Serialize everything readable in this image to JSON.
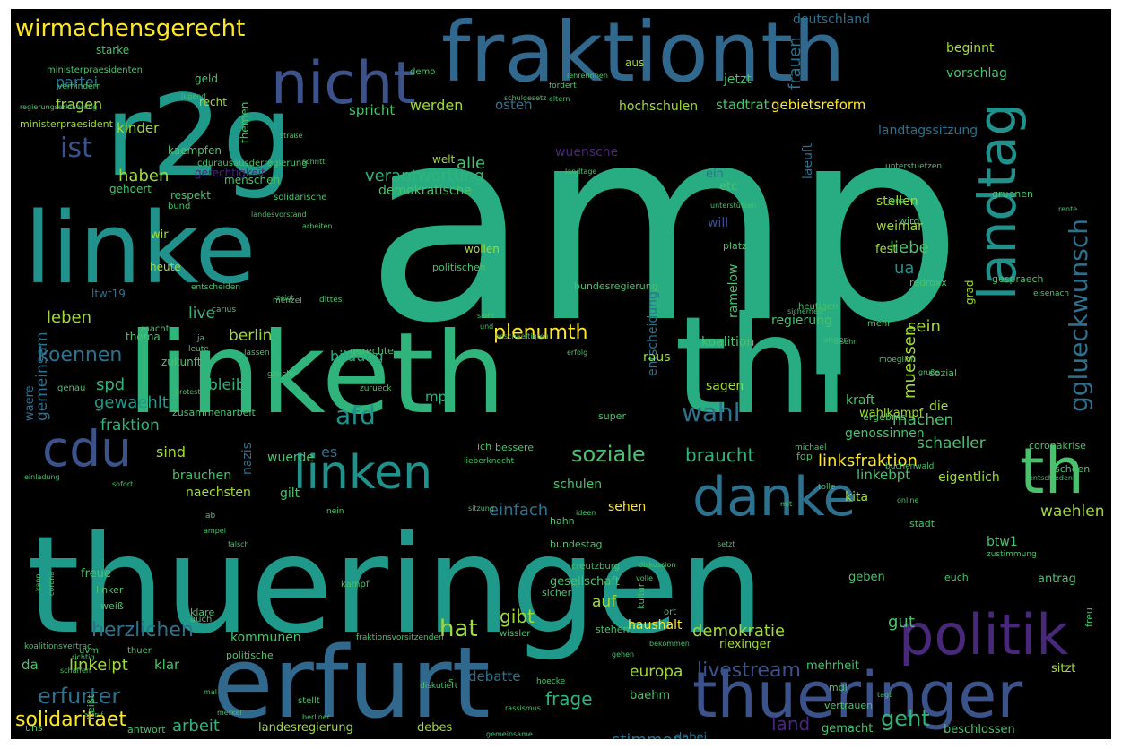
{
  "wordcloud": {
    "background": "#000000",
    "palette": {
      "yellow": "#fde725",
      "lime": "#a0da39",
      "green": "#4ac16d",
      "mint": "#2fb47c",
      "seagreen": "#27ad81",
      "teal": "#1f9a8a",
      "cyan": "#21918c",
      "steel": "#2c728e",
      "blue": "#31688e",
      "slate": "#3b528b",
      "indigo": "#414487",
      "purple": "#482878",
      "violet": "#440154"
    },
    "words": [
      {
        "text": "amp",
        "color": "#27ad81"
      },
      {
        "text": "thueringen",
        "color": "#1f9a8a"
      },
      {
        "text": "linketh",
        "color": "#2fb47c"
      },
      {
        "text": "fraktionth",
        "color": "#31688e"
      },
      {
        "text": "r2g",
        "color": "#1f9a8a"
      },
      {
        "text": "erfurt",
        "color": "#31688e"
      },
      {
        "text": "linke",
        "color": "#21918c"
      },
      {
        "text": "thl",
        "color": "#27ad81"
      },
      {
        "text": "thueringer",
        "color": "#3b528b"
      },
      {
        "text": "nicht",
        "color": "#3b528b"
      },
      {
        "text": "politik",
        "color": "#482878"
      },
      {
        "text": "danke",
        "color": "#2c728e"
      },
      {
        "text": "linken",
        "color": "#21918c"
      },
      {
        "text": "cdu",
        "color": "#3b528b"
      },
      {
        "text": "landtag",
        "color": "#21918c"
      },
      {
        "text": "th",
        "color": "#4ac16d"
      },
      {
        "text": "wirmachensgerecht",
        "color": "#fde725"
      },
      {
        "text": "ist",
        "color": "#3b528b"
      },
      {
        "text": "gglueckwunsch",
        "color": "#2c728e"
      },
      {
        "text": "plenumth",
        "color": "#fde725"
      },
      {
        "text": "soziale",
        "color": "#4ac16d"
      },
      {
        "text": "afd",
        "color": "#21918c"
      },
      {
        "text": "koennen",
        "color": "#2c728e"
      },
      {
        "text": "herzlichen",
        "color": "#2c728e"
      },
      {
        "text": "erfurter",
        "color": "#2c728e"
      },
      {
        "text": "solidaritaet",
        "color": "#fde725"
      },
      {
        "text": "demokratie",
        "color": "#a0da39"
      },
      {
        "text": "livestream",
        "color": "#3b528b"
      },
      {
        "text": "hat",
        "color": "#a0da39"
      },
      {
        "text": "geht",
        "color": "#2fb47c"
      },
      {
        "text": "wahl",
        "color": "#2c728e"
      },
      {
        "text": "braucht",
        "color": "#2fb47c"
      },
      {
        "text": "linksfraktion",
        "color": "#fde725"
      },
      {
        "text": "haben",
        "color": "#a0da39"
      },
      {
        "text": "verantwortung",
        "color": "#2fb47c"
      },
      {
        "text": "werden",
        "color": "#a0da39"
      },
      {
        "text": "partei",
        "color": "#2c728e"
      },
      {
        "text": "fragen",
        "color": "#a0da39"
      },
      {
        "text": "alle",
        "color": "#4ac16d"
      },
      {
        "text": "leben",
        "color": "#a0da39"
      },
      {
        "text": "berlin",
        "color": "#a0da39"
      },
      {
        "text": "live",
        "color": "#2fb47c"
      },
      {
        "text": "spd",
        "color": "#2fb47c"
      },
      {
        "text": "gewaehlt",
        "color": "#1f9a8a"
      },
      {
        "text": "fraktion",
        "color": "#2fb47c"
      },
      {
        "text": "gemeinsam",
        "color": "#2c728e"
      },
      {
        "text": "bleibt",
        "color": "#2fb47c"
      },
      {
        "text": "bildung",
        "color": "#27ad81"
      },
      {
        "text": "sein",
        "color": "#a0da39"
      },
      {
        "text": "muessen",
        "color": "#a0da39"
      },
      {
        "text": "liebe",
        "color": "#4ac16d"
      },
      {
        "text": "ua",
        "color": "#21918c"
      },
      {
        "text": "gibt",
        "color": "#a0da39"
      },
      {
        "text": "land",
        "color": "#482878"
      },
      {
        "text": "frage",
        "color": "#2fb47c"
      },
      {
        "text": "arbeit",
        "color": "#2fb47c"
      },
      {
        "text": "stimmen",
        "color": "#2c728e"
      },
      {
        "text": "schaeller",
        "color": "#4ac16d"
      },
      {
        "text": "machen",
        "color": "#4ac16d"
      },
      {
        "text": "linkelpt",
        "color": "#a0da39"
      },
      {
        "text": "waehlen",
        "color": "#a0da39"
      },
      {
        "text": "einfach",
        "color": "#2c728e"
      },
      {
        "text": "gut",
        "color": "#4ac16d"
      },
      {
        "text": "frauen",
        "color": "#2c728e"
      },
      {
        "text": "mp",
        "color": "#2fb47c"
      },
      {
        "text": "sind",
        "color": "#a0da39"
      },
      {
        "text": "auf",
        "color": "#a0da39"
      },
      {
        "text": "europa",
        "color": "#a0da39"
      },
      {
        "text": "debatte",
        "color": "#2c728e"
      },
      {
        "text": "linkebpt",
        "color": "#4ac16d"
      },
      {
        "text": "kinder",
        "color": "#a0da39"
      },
      {
        "text": "osten",
        "color": "#2c728e"
      },
      {
        "text": "spricht",
        "color": "#4ac16d"
      },
      {
        "text": "stadtrat",
        "color": "#4ac16d"
      },
      {
        "text": "gebietsreform",
        "color": "#fde725"
      },
      {
        "text": "landtagssitzung",
        "color": "#2c728e"
      },
      {
        "text": "deutschland",
        "color": "#2c728e"
      },
      {
        "text": "beginnt",
        "color": "#a0da39"
      },
      {
        "text": "vorschlag",
        "color": "#4ac16d"
      },
      {
        "text": "jetzt",
        "color": "#4ac16d"
      },
      {
        "text": "hochschulen",
        "color": "#a0da39"
      },
      {
        "text": "wuensche",
        "color": "#482878"
      },
      {
        "text": "entscheidung",
        "color": "#2c728e"
      },
      {
        "text": "demokratische",
        "color": "#4ac16d"
      },
      {
        "text": "laeuft",
        "color": "#2c728e"
      },
      {
        "text": "stellen",
        "color": "#a0da39"
      },
      {
        "text": "weimar",
        "color": "#a0da39"
      },
      {
        "text": "will",
        "color": "#3b528b"
      },
      {
        "text": "ramelow",
        "color": "#4ac16d"
      },
      {
        "text": "regierung",
        "color": "#4ac16d"
      },
      {
        "text": "raus",
        "color": "#a0da39"
      },
      {
        "text": "koalition",
        "color": "#4ac16d"
      },
      {
        "text": "sagen",
        "color": "#a0da39"
      },
      {
        "text": "kraft",
        "color": "#4ac16d"
      },
      {
        "text": "nazis",
        "color": "#2c728e"
      },
      {
        "text": "wuerde",
        "color": "#4ac16d"
      },
      {
        "text": "brauchen",
        "color": "#4ac16d"
      },
      {
        "text": "sehen",
        "color": "#fde725"
      },
      {
        "text": "schulen",
        "color": "#4ac16d"
      },
      {
        "text": "eigentlich",
        "color": "#a0da39"
      },
      {
        "text": "genossinnen",
        "color": "#4ac16d"
      },
      {
        "text": "kita",
        "color": "#a0da39"
      },
      {
        "text": "naechsten",
        "color": "#a0da39"
      },
      {
        "text": "gilt",
        "color": "#4ac16d"
      },
      {
        "text": "btw1",
        "color": "#4ac16d"
      },
      {
        "text": "haushalt",
        "color": "#fde725"
      },
      {
        "text": "kommunen",
        "color": "#4ac16d"
      },
      {
        "text": "riexinger",
        "color": "#a0da39"
      },
      {
        "text": "mehrheit",
        "color": "#4ac16d"
      },
      {
        "text": "sitzt",
        "color": "#a0da39"
      },
      {
        "text": "baehm",
        "color": "#4ac16d"
      },
      {
        "text": "beschlossen",
        "color": "#4ac16d"
      },
      {
        "text": "gemacht",
        "color": "#4ac16d"
      },
      {
        "text": "dabei",
        "color": "#2c728e"
      },
      {
        "text": "landesregierung",
        "color": "#a0da39"
      },
      {
        "text": "debes",
        "color": "#a0da39"
      },
      {
        "text": "da",
        "color": "#4ac16d"
      },
      {
        "text": "klar",
        "color": "#4ac16d"
      },
      {
        "text": "waere",
        "color": "#2c728e"
      },
      {
        "text": "freue",
        "color": "#4ac16d"
      },
      {
        "text": "gesellschaft",
        "color": "#4ac16d"
      },
      {
        "text": "geben",
        "color": "#4ac16d"
      },
      {
        "text": "antrag",
        "color": "#4ac16d"
      },
      {
        "text": "fest",
        "color": "#a0da39"
      },
      {
        "text": "etc",
        "color": "#4ac16d"
      },
      {
        "text": "ein",
        "color": "#2c728e"
      },
      {
        "text": "thema",
        "color": "#4ac16d"
      },
      {
        "text": "zukunft",
        "color": "#4ac16d"
      },
      {
        "text": "themen",
        "color": "#4ac16d"
      },
      {
        "text": "menschen",
        "color": "#4ac16d"
      },
      {
        "text": "respekt",
        "color": "#4ac16d"
      },
      {
        "text": "gerechtigkeit",
        "color": "#482878"
      },
      {
        "text": "gehoert",
        "color": "#4ac16d"
      },
      {
        "text": "wir",
        "color": "#a0da39"
      },
      {
        "text": "heute",
        "color": "#a0da39"
      },
      {
        "text": "ltwt19",
        "color": "#2c728e"
      },
      {
        "text": "welt",
        "color": "#a0da39"
      },
      {
        "text": "geld",
        "color": "#4ac16d"
      },
      {
        "text": "recht",
        "color": "#a0da39"
      },
      {
        "text": "starke",
        "color": "#4ac16d"
      },
      {
        "text": "ministerpraesident",
        "color": "#a0da39"
      },
      {
        "text": "ministerpraesidenten",
        "color": "#4ac16d"
      },
      {
        "text": "aus",
        "color": "#a0da39"
      },
      {
        "text": "wahlkampf",
        "color": "#a0da39"
      },
      {
        "text": "gerechte",
        "color": "#4ac16d"
      },
      {
        "text": "zusammenarbeit",
        "color": "#4ac16d"
      },
      {
        "text": "politischen",
        "color": "#4ac16d"
      },
      {
        "text": "wollen",
        "color": "#a0da39"
      },
      {
        "text": "super",
        "color": "#4ac16d"
      },
      {
        "text": "ich",
        "color": "#4ac16d"
      },
      {
        "text": "bessere",
        "color": "#4ac16d"
      },
      {
        "text": "die",
        "color": "#a0da39"
      },
      {
        "text": "es",
        "color": "#2c728e"
      },
      {
        "text": "bundesregierung",
        "color": "#4ac16d"
      },
      {
        "text": "linker",
        "color": "#4ac16d"
      },
      {
        "text": "kampf",
        "color": "#4ac16d"
      },
      {
        "text": "uvm",
        "color": "#4ac16d"
      },
      {
        "text": "thuer",
        "color": "#4ac16d"
      },
      {
        "text": "politische",
        "color": "#4ac16d"
      },
      {
        "text": "antwort",
        "color": "#4ac16d"
      },
      {
        "text": "heißt",
        "color": "#4ac16d"
      },
      {
        "text": "uns",
        "color": "#4ac16d"
      },
      {
        "text": "auch",
        "color": "#4ac16d"
      },
      {
        "text": "weiß",
        "color": "#4ac16d"
      },
      {
        "text": "fdp",
        "color": "#4ac16d"
      },
      {
        "text": "schoen",
        "color": "#4ac16d"
      },
      {
        "text": "hahn",
        "color": "#4ac16d"
      },
      {
        "text": "sozial",
        "color": "#4ac16d"
      },
      {
        "text": "ergebnis",
        "color": "#4ac16d"
      },
      {
        "text": "coronakrise",
        "color": "#4ac16d"
      },
      {
        "text": "freu",
        "color": "#4ac16d"
      },
      {
        "text": "grad",
        "color": "#a0da39"
      },
      {
        "text": "gespraech",
        "color": "#4ac16d"
      },
      {
        "text": "wird",
        "color": "#4ac16d"
      },
      {
        "text": "gruenen",
        "color": "#4ac16d"
      },
      {
        "text": "platz",
        "color": "#4ac16d"
      },
      {
        "text": "heutigen",
        "color": "#4ac16d"
      },
      {
        "text": "redroxx",
        "color": "#4ac16d"
      },
      {
        "text": "mehr",
        "color": "#4ac16d"
      },
      {
        "text": "sicher",
        "color": "#4ac16d"
      },
      {
        "text": "stehen",
        "color": "#4ac16d"
      },
      {
        "text": "ort",
        "color": "#4ac16d"
      },
      {
        "text": "kultur",
        "color": "#4ac16d"
      },
      {
        "text": "bundestag",
        "color": "#4ac16d"
      },
      {
        "text": "creutzburg",
        "color": "#4ac16d"
      },
      {
        "text": "euch",
        "color": "#4ac16d"
      },
      {
        "text": "stadt",
        "color": "#4ac16d"
      },
      {
        "text": "wissler",
        "color": "#4ac16d"
      },
      {
        "text": "vertrauen",
        "color": "#4ac16d"
      },
      {
        "text": "mdl",
        "color": "#4ac16d"
      },
      {
        "text": "kaempfen",
        "color": "#4ac16d"
      },
      {
        "text": "cdurausausderregierung",
        "color": "#4ac16d"
      },
      {
        "text": "solidarische",
        "color": "#4ac16d"
      },
      {
        "text": "demo",
        "color": "#4ac16d"
      },
      {
        "text": "fordert",
        "color": "#4ac16d"
      },
      {
        "text": "bund",
        "color": "#4ac16d"
      },
      {
        "text": "eisenach",
        "color": "#4ac16d"
      },
      {
        "text": "zustimmung",
        "color": "#4ac16d"
      },
      {
        "text": "verhindern",
        "color": "#4ac16d"
      },
      {
        "text": "hoecke",
        "color": "#4ac16d"
      },
      {
        "text": "diskutiert",
        "color": "#4ac16d"
      },
      {
        "text": "stellt",
        "color": "#4ac16d"
      },
      {
        "text": "fraktionsvorsitzenden",
        "color": "#4ac16d"
      },
      {
        "text": "unterstuetzen",
        "color": "#4ac16d"
      },
      {
        "text": "buchenwald",
        "color": "#4ac16d"
      },
      {
        "text": "genau",
        "color": "#4ac16d"
      },
      {
        "text": "macht",
        "color": "#4ac16d"
      },
      {
        "text": "leute",
        "color": "#4ac16d"
      },
      {
        "text": "carius",
        "color": "#4ac16d"
      },
      {
        "text": "menzel",
        "color": "#4ac16d"
      },
      {
        "text": "dittes",
        "color": "#4ac16d"
      },
      {
        "text": "lassen",
        "color": "#4ac16d"
      },
      {
        "text": "gleiche",
        "color": "#4ac16d"
      },
      {
        "text": "zurueck",
        "color": "#4ac16d"
      },
      {
        "text": "entscheiden",
        "color": "#4ac16d"
      },
      {
        "text": "michael",
        "color": "#4ac16d"
      },
      {
        "text": "tolle",
        "color": "#4ac16d"
      },
      {
        "text": "entschieden",
        "color": "#4ac16d"
      },
      {
        "text": "lieberknecht",
        "color": "#4ac16d"
      },
      {
        "text": "anger",
        "color": "#4ac16d"
      },
      {
        "text": "moeglich",
        "color": "#4ac16d"
      },
      {
        "text": "jena",
        "color": "#4ac16d"
      },
      {
        "text": "nein",
        "color": "#4ac16d"
      },
      {
        "text": "ab",
        "color": "#4ac16d"
      },
      {
        "text": "einladung",
        "color": "#4ac16d"
      },
      {
        "text": "sofort",
        "color": "#4ac16d"
      },
      {
        "text": "online",
        "color": "#4ac16d"
      },
      {
        "text": "diskussion",
        "color": "#4ac16d"
      },
      {
        "text": "volle",
        "color": "#4ac16d"
      },
      {
        "text": "setzt",
        "color": "#4ac16d"
      },
      {
        "text": "ampel",
        "color": "#4ac16d"
      },
      {
        "text": "falsch",
        "color": "#4ac16d"
      },
      {
        "text": "protest",
        "color": "#4ac16d"
      },
      {
        "text": "ja",
        "color": "#4ac16d"
      },
      {
        "text": "rente",
        "color": "#4ac16d"
      },
      {
        "text": "gruße",
        "color": "#4ac16d"
      },
      {
        "text": "bekommen",
        "color": "#4ac16d"
      },
      {
        "text": "tagt",
        "color": "#4ac16d"
      },
      {
        "text": "gehen",
        "color": "#4ac16d"
      },
      {
        "text": "kann",
        "color": "#4ac16d"
      },
      {
        "text": "corona",
        "color": "#4ac16d"
      },
      {
        "text": "sitzung",
        "color": "#4ac16d"
      },
      {
        "text": "ideen",
        "color": "#4ac16d"
      },
      {
        "text": "zeigt",
        "color": "#4ac16d"
      },
      {
        "text": "mit",
        "color": "#4ac16d"
      },
      {
        "text": "s",
        "color": "#4ac16d"
      },
      {
        "text": "koalitionsvertrag",
        "color": "#4ac16d"
      },
      {
        "text": "richtig",
        "color": "#4ac16d"
      },
      {
        "text": "schaffen",
        "color": "#4ac16d"
      },
      {
        "text": "mal",
        "color": "#4ac16d"
      },
      {
        "text": "merkel",
        "color": "#4ac16d"
      },
      {
        "text": "berliner",
        "color": "#4ac16d"
      },
      {
        "text": "rassismus",
        "color": "#4ac16d"
      },
      {
        "text": "gemeinsame",
        "color": "#4ac16d"
      },
      {
        "text": "landesvorstand",
        "color": "#4ac16d"
      },
      {
        "text": "arbeiten",
        "color": "#4ac16d"
      },
      {
        "text": "sehr",
        "color": "#4ac16d"
      },
      {
        "text": "sicherheit",
        "color": "#4ac16d"
      },
      {
        "text": "sieht",
        "color": "#4ac16d"
      },
      {
        "text": "und",
        "color": "#4ac16d"
      },
      {
        "text": "beschaeftigten",
        "color": "#4ac16d"
      },
      {
        "text": "erfolg",
        "color": "#4ac16d"
      },
      {
        "text": "unterstützen",
        "color": "#4ac16d"
      },
      {
        "text": "landtage",
        "color": "#4ac16d"
      },
      {
        "text": "schritt",
        "color": "#4ac16d"
      },
      {
        "text": "straße",
        "color": "#4ac16d"
      },
      {
        "text": "eltern",
        "color": "#4ac16d"
      },
      {
        "text": "schulgesetz",
        "color": "#4ac16d"
      },
      {
        "text": "lehrerinnen",
        "color": "#4ac16d"
      },
      {
        "text": "jugend",
        "color": "#4ac16d"
      },
      {
        "text": "regierungserklaerung",
        "color": "#4ac16d"
      },
      {
        "text": "aufruf",
        "color": "#4ac16d"
      },
      {
        "text": "klare",
        "color": "#4ac16d"
      }
    ]
  }
}
